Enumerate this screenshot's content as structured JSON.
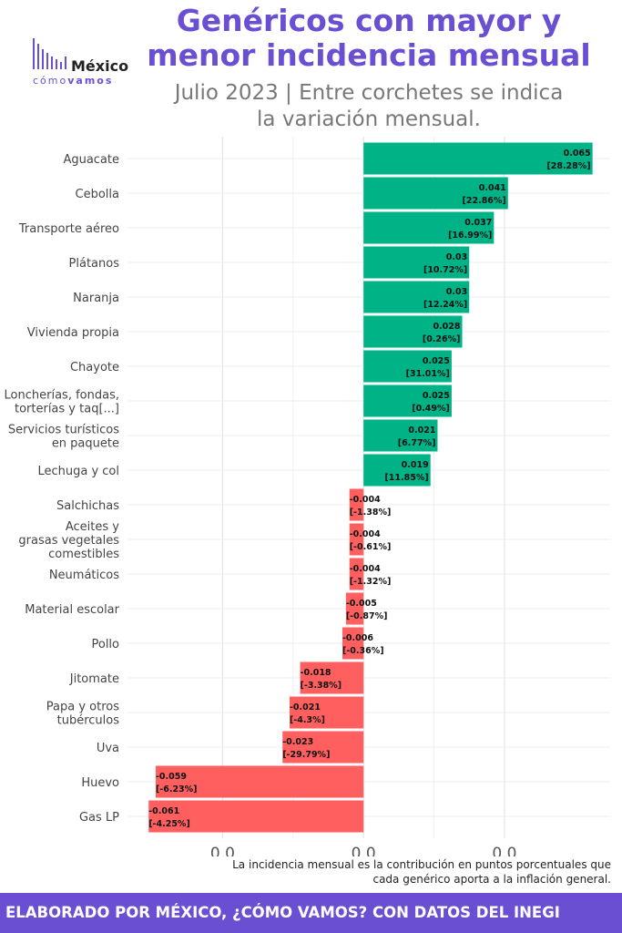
{
  "header": {
    "title_line1": "Genéricos con mayor y",
    "title_line2": "menor incidencia mensual",
    "subtitle_line1": "Julio 2023 | Entre corchetes se indica",
    "subtitle_line2": "la variación mensual."
  },
  "logo": {
    "main": "México",
    "sub_a": "cómo",
    "sub_b": "vamos"
  },
  "note": {
    "line1": "La incidencia mensual es la contribución en puntos porcentuales que",
    "line2": "cada genérico aporta a la inflación general."
  },
  "footer": {
    "text": "ELABORADO POR MÉXICO, ¿CÓMO VAMOS? CON DATOS DEL INEGI"
  },
  "colors": {
    "accent": "#6a4fd3",
    "positive": "#00b386",
    "negative": "#ff5f5f"
  },
  "chart_data": {
    "type": "bar",
    "orientation": "horizontal",
    "xlim": [
      -0.067,
      0.07
    ],
    "x_ticks": [
      -0.04,
      0.0,
      0.04
    ],
    "x_tick_labels": [
      "0.0",
      "0.0",
      "0.0"
    ],
    "grid": true,
    "categories": [
      [
        "Aguacate"
      ],
      [
        "Cebolla"
      ],
      [
        "Transporte aéreo"
      ],
      [
        "Plátanos"
      ],
      [
        "Naranja"
      ],
      [
        "Vivienda propia"
      ],
      [
        "Chayote"
      ],
      [
        "Loncherías, fondas,",
        "torterías y taq[...]"
      ],
      [
        "Servicios turísticos",
        "en paquete"
      ],
      [
        "Lechuga y col"
      ],
      [
        "Salchichas"
      ],
      [
        "Aceites y",
        "grasas vegetales",
        "comestibles"
      ],
      [
        "Neumáticos"
      ],
      [
        "Material escolar"
      ],
      [
        "Pollo"
      ],
      [
        "Jitomate"
      ],
      [
        "Papa y otros",
        "tubérculos"
      ],
      [
        "Uva"
      ],
      [
        "Huevo"
      ],
      [
        "Gas LP"
      ]
    ],
    "values": [
      0.065,
      0.041,
      0.037,
      0.03,
      0.03,
      0.028,
      0.025,
      0.025,
      0.021,
      0.019,
      -0.004,
      -0.004,
      -0.004,
      -0.005,
      -0.006,
      -0.018,
      -0.021,
      -0.023,
      -0.059,
      -0.061
    ],
    "value_labels": [
      "0.065",
      "0.041",
      "0.037",
      "0.03",
      "0.03",
      "0.028",
      "0.025",
      "0.025",
      "0.021",
      "0.019",
      "-0.004",
      "-0.004",
      "-0.004",
      "-0.005",
      "-0.006",
      "-0.018",
      "-0.021",
      "-0.023",
      "-0.059",
      "-0.061"
    ],
    "variation_labels": [
      "[28.28%]",
      "[22.86%]",
      "[16.99%]",
      "[10.72%]",
      "[12.24%]",
      "[0.26%]",
      "[31.01%]",
      "[0.49%]",
      "[6.77%]",
      "[11.85%]",
      "[-1.38%]",
      "[-0.61%]",
      "[-1.32%]",
      "[-0.87%]",
      "[-0.36%]",
      "[-3.38%]",
      "[-4.3%]",
      "[-29.79%]",
      "[-6.23%]",
      "[-4.25%]"
    ]
  }
}
